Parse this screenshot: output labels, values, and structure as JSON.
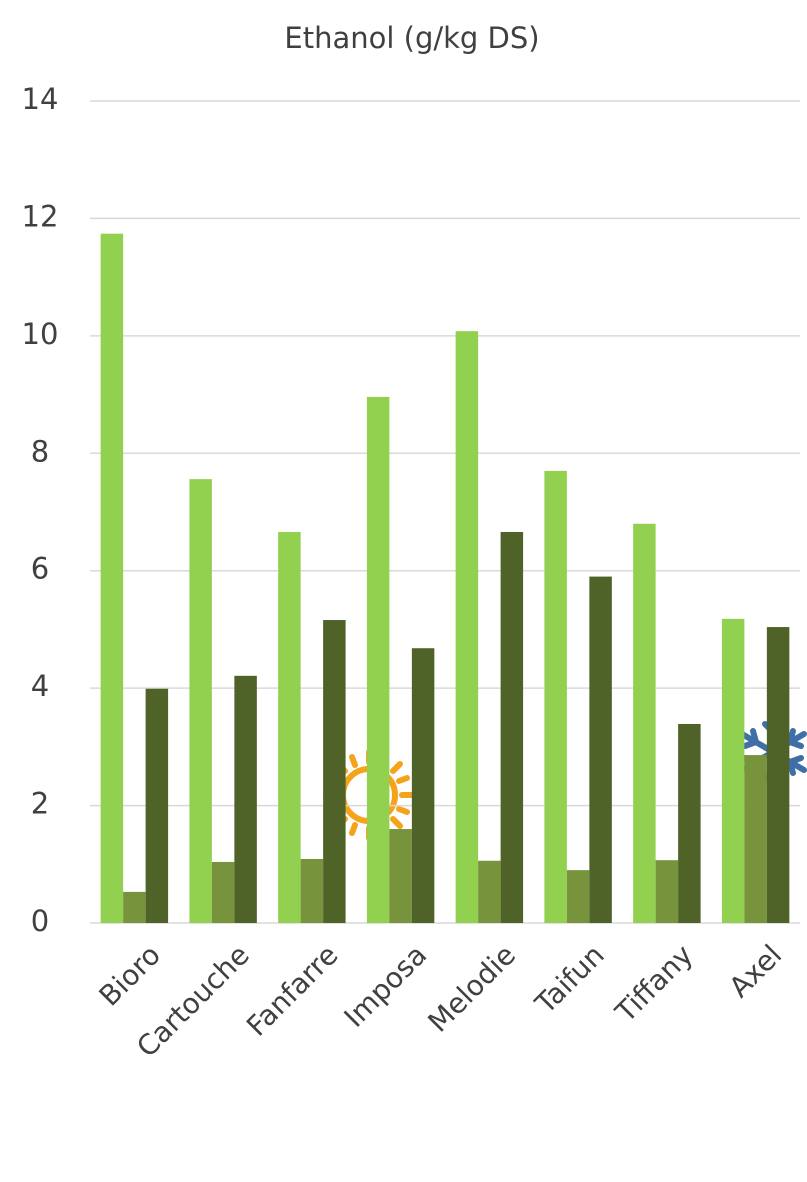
{
  "chart_data": {
    "type": "bar",
    "title": "Ethanol (g/kg DS)",
    "categories": [
      "Bioro",
      "Cartouche",
      "Fanfarre",
      "Imposa",
      "Melodie",
      "Taifun",
      "Tiffany",
      "Axel"
    ],
    "series": [
      {
        "color": "#92d050",
        "values": [
          11.74,
          7.56,
          6.66,
          8.96,
          10.08,
          7.7,
          6.8,
          5.18
        ]
      },
      {
        "color": "#77933c",
        "values": [
          0.53,
          1.04,
          1.09,
          1.6,
          1.06,
          0.9,
          1.07,
          2.86
        ]
      },
      {
        "color": "#4f6228",
        "values": [
          3.99,
          4.21,
          5.16,
          4.68,
          6.66,
          5.9,
          3.39,
          5.04
        ]
      }
    ],
    "ylim": [
      0,
      14
    ],
    "yticks": [
      0,
      2,
      4,
      6,
      8,
      10,
      12,
      14
    ],
    "grid": true
  }
}
